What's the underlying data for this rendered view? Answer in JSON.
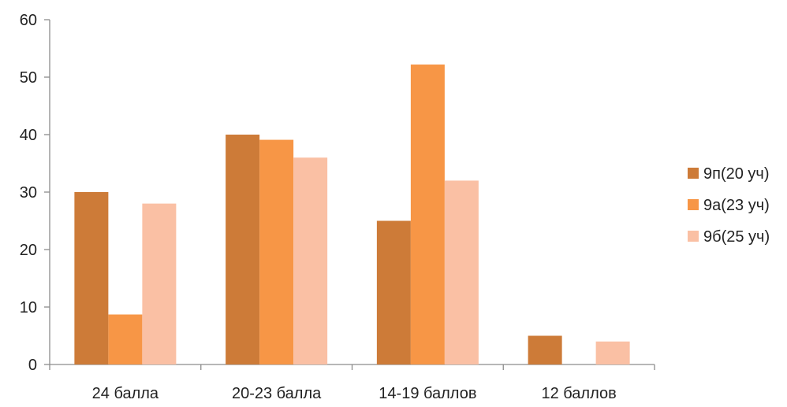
{
  "chart_data": {
    "type": "bar",
    "title": "",
    "xlabel": "",
    "ylabel": "",
    "categories": [
      "24 балла",
      "20-23 балла",
      "14-19 баллов",
      "12 баллов"
    ],
    "series": [
      {
        "name": "9п(20 уч)",
        "values": [
          30,
          40,
          25,
          5
        ],
        "color": "#cd7b38"
      },
      {
        "name": "9а(23 уч)",
        "values": [
          8.7,
          39.1,
          52.2,
          0
        ],
        "color": "#f79646"
      },
      {
        "name": "9б(25 уч)",
        "values": [
          28,
          36,
          32,
          4
        ],
        "color": "#fac0a4"
      }
    ],
    "ylim": [
      0,
      60
    ],
    "yticks": [
      0,
      10,
      20,
      30,
      40,
      50,
      60
    ],
    "grid": false,
    "legend": "right"
  }
}
